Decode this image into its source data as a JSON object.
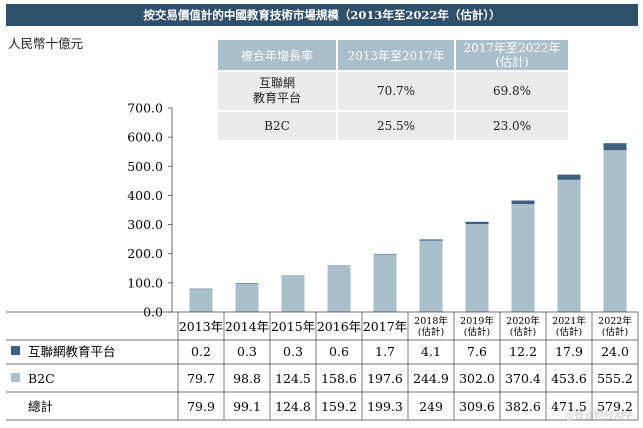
{
  "title": "按交易價值計的中國教育技術市場規模（2013年至2022年（估計））",
  "unit_label": "人民幣十億元",
  "cagr_table": {
    "header": [
      "複合年增長率",
      "2013年至2017年",
      "2017年至2022年\n(估計)"
    ],
    "rows": [
      {
        "label": "互聯網\n教育平台",
        "v1": "70.7%",
        "v2": "69.8%"
      },
      {
        "label": "B2C",
        "v1": "25.5%",
        "v2": "23.0%"
      }
    ]
  },
  "colors": {
    "title_bg": "#2f4f6b",
    "platform": "#3f5f7f",
    "b2c": "#a9bfcc",
    "cagr_header": "#a9bfcc"
  },
  "chart_data": {
    "type": "bar",
    "stacked": true,
    "title": "按交易價值計的中國教育技術市場規模（2013年至2022年（估計））",
    "ylabel": "人民幣十億元",
    "ylim": [
      0,
      700
    ],
    "yticks": [
      "0.0",
      "100.0",
      "200.0",
      "300.0",
      "400.0",
      "500.0",
      "600.0",
      "700.0"
    ],
    "categories": [
      "2013年",
      "2014年",
      "2015年",
      "2016年",
      "2017年",
      "2018年\n(估計)",
      "2019年\n(估計)",
      "2020年\n(估計)",
      "2021年\n(估計)",
      "2022年\n(估計)"
    ],
    "series": [
      {
        "name": "B2C",
        "values": [
          79.7,
          98.8,
          124.5,
          158.6,
          197.6,
          244.9,
          302.0,
          370.4,
          453.6,
          555.2
        ],
        "labels": [
          "79.7",
          "98.8",
          "124.5",
          "158.6",
          "197.6",
          "244.9",
          "302.0",
          "370.4",
          "453.6",
          "555.2"
        ]
      },
      {
        "name": "互聯網教育平台",
        "values": [
          0.2,
          0.3,
          0.3,
          0.6,
          1.7,
          4.1,
          7.6,
          12.2,
          17.9,
          24.0
        ],
        "labels": [
          "0.2",
          "0.3",
          "0.3",
          "0.6",
          "1.7",
          "4.1",
          "7.6",
          "12.2",
          "17.9",
          "24.0"
        ]
      }
    ],
    "totals_label": "總計",
    "totals": [
      "79.9",
      "99.1",
      "124.8",
      "159.2",
      "199.3",
      "249",
      "309.6",
      "382.6",
      "471.5",
      "579.2"
    ]
  },
  "watermark": "@智通财经APP"
}
